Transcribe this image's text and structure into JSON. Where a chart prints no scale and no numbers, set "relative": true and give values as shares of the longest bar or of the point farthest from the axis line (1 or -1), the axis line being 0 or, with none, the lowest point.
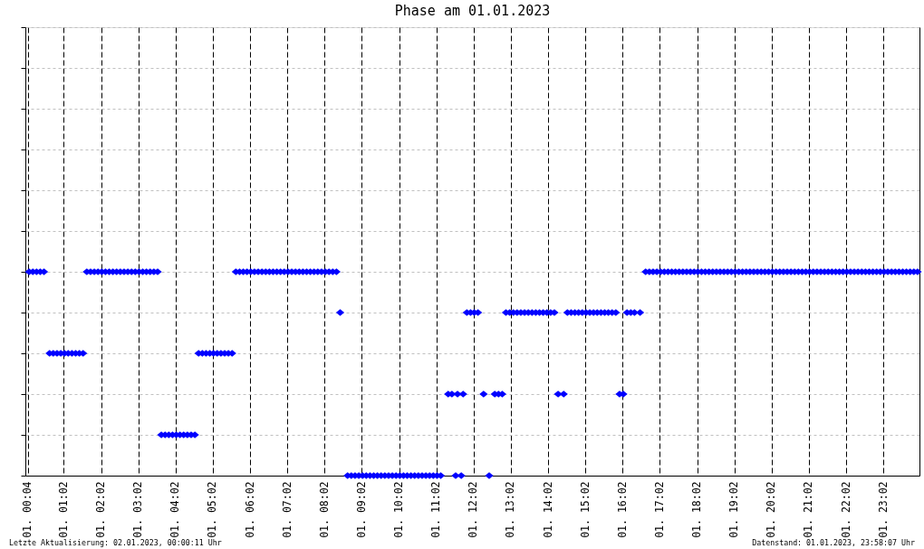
{
  "chart_data": {
    "type": "scatter",
    "title": "Phase am 01.01.2023",
    "relative": true,
    "x": [
      "2023-01-01T00:06",
      "2023-01-01T00:12",
      "2023-01-01T00:18",
      "2023-01-01T00:24",
      "2023-01-01T00:30",
      "2023-01-01T00:39",
      "2023-01-01T00:45",
      "2023-01-01T00:51",
      "2023-01-01T00:57",
      "2023-01-01T01:03",
      "2023-01-01T01:09",
      "2023-01-01T01:15",
      "2023-01-01T01:21",
      "2023-01-01T01:27",
      "2023-01-01T01:33",
      "2023-01-01T01:39",
      "2023-01-01T01:45",
      "2023-01-01T01:51",
      "2023-01-01T01:57",
      "2023-01-01T02:03",
      "2023-01-01T02:09",
      "2023-01-01T02:15",
      "2023-01-01T02:21",
      "2023-01-01T02:27",
      "2023-01-01T02:33",
      "2023-01-01T02:39",
      "2023-01-01T02:45",
      "2023-01-01T02:51",
      "2023-01-01T02:57",
      "2023-01-01T03:03",
      "2023-01-01T03:09",
      "2023-01-01T03:15",
      "2023-01-01T03:21",
      "2023-01-01T03:27",
      "2023-01-01T03:33",
      "2023-01-01T03:39",
      "2023-01-01T03:45",
      "2023-01-01T03:51",
      "2023-01-01T03:57",
      "2023-01-01T04:03",
      "2023-01-01T04:09",
      "2023-01-01T04:15",
      "2023-01-01T04:21",
      "2023-01-01T04:27",
      "2023-01-01T04:33",
      "2023-01-01T04:39",
      "2023-01-01T04:45",
      "2023-01-01T04:51",
      "2023-01-01T04:57",
      "2023-01-01T05:03",
      "2023-01-01T05:09",
      "2023-01-01T05:15",
      "2023-01-01T05:21",
      "2023-01-01T05:27",
      "2023-01-01T05:33",
      "2023-01-01T05:39",
      "2023-01-01T05:45",
      "2023-01-01T05:51",
      "2023-01-01T05:57",
      "2023-01-01T06:03",
      "2023-01-01T06:09",
      "2023-01-01T06:15",
      "2023-01-01T06:21",
      "2023-01-01T06:27",
      "2023-01-01T06:33",
      "2023-01-01T06:39",
      "2023-01-01T06:45",
      "2023-01-01T06:51",
      "2023-01-01T06:57",
      "2023-01-01T07:03",
      "2023-01-01T07:09",
      "2023-01-01T07:15",
      "2023-01-01T07:21",
      "2023-01-01T07:27",
      "2023-01-01T07:33",
      "2023-01-01T07:39",
      "2023-01-01T07:45",
      "2023-01-01T07:51",
      "2023-01-01T07:57",
      "2023-01-01T08:03",
      "2023-01-01T08:09",
      "2023-01-01T08:15",
      "2023-01-01T08:21",
      "2023-01-01T08:27",
      "2023-01-01T08:39",
      "2023-01-01T08:45",
      "2023-01-01T08:51",
      "2023-01-01T08:57",
      "2023-01-01T09:03",
      "2023-01-01T09:09",
      "2023-01-01T09:15",
      "2023-01-01T09:21",
      "2023-01-01T09:27",
      "2023-01-01T09:33",
      "2023-01-01T09:39",
      "2023-01-01T09:45",
      "2023-01-01T09:51",
      "2023-01-01T09:57",
      "2023-01-01T10:03",
      "2023-01-01T10:09",
      "2023-01-01T10:15",
      "2023-01-01T10:21",
      "2023-01-01T10:27",
      "2023-01-01T10:33",
      "2023-01-01T10:39",
      "2023-01-01T10:45",
      "2023-01-01T10:51",
      "2023-01-01T10:57",
      "2023-01-01T11:03",
      "2023-01-01T11:09",
      "2023-01-01T11:21",
      "2023-01-01T11:27",
      "2023-01-01T11:33",
      "2023-01-01T11:36",
      "2023-01-01T11:42",
      "2023-01-01T11:45",
      "2023-01-01T11:51",
      "2023-01-01T11:57",
      "2023-01-01T12:03",
      "2023-01-01T12:09",
      "2023-01-01T12:18",
      "2023-01-01T12:27",
      "2023-01-01T12:36",
      "2023-01-01T12:42",
      "2023-01-01T12:48",
      "2023-01-01T12:54",
      "2023-01-01T13:00",
      "2023-01-01T13:06",
      "2023-01-01T13:12",
      "2023-01-01T13:18",
      "2023-01-01T13:24",
      "2023-01-01T13:30",
      "2023-01-01T13:36",
      "2023-01-01T13:42",
      "2023-01-01T13:48",
      "2023-01-01T13:54",
      "2023-01-01T14:00",
      "2023-01-01T14:06",
      "2023-01-01T14:12",
      "2023-01-01T14:18",
      "2023-01-01T14:27",
      "2023-01-01T14:33",
      "2023-01-01T14:39",
      "2023-01-01T14:45",
      "2023-01-01T14:51",
      "2023-01-01T14:57",
      "2023-01-01T15:03",
      "2023-01-01T15:09",
      "2023-01-01T15:15",
      "2023-01-01T15:21",
      "2023-01-01T15:27",
      "2023-01-01T15:33",
      "2023-01-01T15:39",
      "2023-01-01T15:45",
      "2023-01-01T15:51",
      "2023-01-01T15:57",
      "2023-01-01T16:03",
      "2023-01-01T16:09",
      "2023-01-01T16:15",
      "2023-01-01T16:21",
      "2023-01-01T16:30",
      "2023-01-01T16:39",
      "2023-01-01T16:45",
      "2023-01-01T16:51",
      "2023-01-01T16:57",
      "2023-01-01T17:03",
      "2023-01-01T17:09",
      "2023-01-01T17:15",
      "2023-01-01T17:21",
      "2023-01-01T17:27",
      "2023-01-01T17:33",
      "2023-01-01T17:39",
      "2023-01-01T17:45",
      "2023-01-01T17:51",
      "2023-01-01T17:57",
      "2023-01-01T18:03",
      "2023-01-01T18:09",
      "2023-01-01T18:15",
      "2023-01-01T18:21",
      "2023-01-01T18:27",
      "2023-01-01T18:33",
      "2023-01-01T18:39",
      "2023-01-01T18:45",
      "2023-01-01T18:51",
      "2023-01-01T18:57",
      "2023-01-01T19:03",
      "2023-01-01T19:09",
      "2023-01-01T19:15",
      "2023-01-01T19:21",
      "2023-01-01T19:27",
      "2023-01-01T19:33",
      "2023-01-01T19:39",
      "2023-01-01T19:45",
      "2023-01-01T19:51",
      "2023-01-01T19:57",
      "2023-01-01T20:03",
      "2023-01-01T20:09",
      "2023-01-01T20:15",
      "2023-01-01T20:21",
      "2023-01-01T20:27",
      "2023-01-01T20:33",
      "2023-01-01T20:39",
      "2023-01-01T20:45",
      "2023-01-01T20:51",
      "2023-01-01T20:57",
      "2023-01-01T21:03",
      "2023-01-01T21:09",
      "2023-01-01T21:15",
      "2023-01-01T21:21",
      "2023-01-01T21:27",
      "2023-01-01T21:33",
      "2023-01-01T21:39",
      "2023-01-01T21:45",
      "2023-01-01T21:51",
      "2023-01-01T21:57",
      "2023-01-01T22:03",
      "2023-01-01T22:09",
      "2023-01-01T22:15",
      "2023-01-01T22:21",
      "2023-01-01T22:27",
      "2023-01-01T22:33",
      "2023-01-01T22:39",
      "2023-01-01T22:45",
      "2023-01-01T22:51",
      "2023-01-01T22:57",
      "2023-01-01T23:03",
      "2023-01-01T23:09",
      "2023-01-01T23:15",
      "2023-01-01T23:21",
      "2023-01-01T23:27",
      "2023-01-01T23:33",
      "2023-01-01T23:39",
      "2023-01-01T23:45",
      "2023-01-01T23:51",
      "2023-01-01T23:57"
    ],
    "series": [
      {
        "color": "#0000ff",
        "values": [
          1,
          1,
          1,
          1,
          1,
          0.6,
          0.6,
          0.6,
          0.6,
          0.6,
          0.6,
          0.6,
          0.6,
          0.6,
          0.6,
          1,
          1,
          1,
          1,
          1,
          1,
          1,
          1,
          1,
          1,
          1,
          1,
          1,
          1,
          1,
          1,
          1,
          1,
          1,
          1,
          0.2,
          0.2,
          0.2,
          0.2,
          0.2,
          0.2,
          0.2,
          0.2,
          0.2,
          0.2,
          0.6,
          0.6,
          0.6,
          0.6,
          0.6,
          0.6,
          0.6,
          0.6,
          0.6,
          0.6,
          1,
          1,
          1,
          1,
          1,
          1,
          1,
          1,
          1,
          1,
          1,
          1,
          1,
          1,
          1,
          1,
          1,
          1,
          1,
          1,
          1,
          1,
          1,
          1,
          1,
          1,
          1,
          1,
          0.8,
          0,
          0,
          0,
          0,
          0,
          0,
          0,
          0,
          0,
          0,
          0,
          0,
          0,
          0,
          0,
          0,
          0,
          0,
          0,
          0,
          0,
          0,
          0,
          0,
          0,
          0,
          0.4,
          0.4,
          0,
          0.4,
          0,
          0.4,
          0.8,
          0.8,
          0.8,
          0.8,
          0.4,
          0,
          0.4,
          0.4,
          0.4,
          0.8,
          0.8,
          0.8,
          0.8,
          0.8,
          0.8,
          0.8,
          0.8,
          0.8,
          0.8,
          0.8,
          0.8,
          0.8,
          0.8,
          0.4,
          0.4,
          0.8,
          0.8,
          0.8,
          0.8,
          0.8,
          0.8,
          0.8,
          0.8,
          0.8,
          0.8,
          0.8,
          0.8,
          0.8,
          0.8,
          0.4,
          0.4,
          0.8,
          0.8,
          0.8,
          0.8,
          1,
          1,
          1,
          1,
          1,
          1,
          1,
          1,
          1,
          1,
          1,
          1,
          1,
          1,
          1,
          1,
          1,
          1,
          1,
          1,
          1,
          1,
          1,
          1,
          1,
          1,
          1,
          1,
          1,
          1,
          1,
          1,
          1,
          1,
          1,
          1,
          1,
          1,
          1,
          1,
          1,
          1,
          1,
          1,
          1,
          1,
          1,
          1,
          1,
          1,
          1,
          1,
          1,
          1,
          1,
          1,
          1,
          1,
          1,
          1,
          1,
          1,
          1,
          1,
          1,
          1,
          1,
          1,
          1,
          1,
          1,
          1,
          1,
          1
        ]
      }
    ],
    "xlim": [
      "2023-01-01T00:00",
      "2023-01-02T00:00"
    ],
    "xticks": [
      {
        "value": "2023-01-01T00:04",
        "label": "01. 00:04"
      },
      {
        "value": "2023-01-01T01:02",
        "label": "01. 01:02"
      },
      {
        "value": "2023-01-01T02:02",
        "label": "01. 02:02"
      },
      {
        "value": "2023-01-01T03:02",
        "label": "01. 03:02"
      },
      {
        "value": "2023-01-01T04:02",
        "label": "01. 04:02"
      },
      {
        "value": "2023-01-01T05:02",
        "label": "01. 05:02"
      },
      {
        "value": "2023-01-01T06:02",
        "label": "01. 06:02"
      },
      {
        "value": "2023-01-01T07:02",
        "label": "01. 07:02"
      },
      {
        "value": "2023-01-01T08:02",
        "label": "01. 08:02"
      },
      {
        "value": "2023-01-01T09:02",
        "label": "01. 09:02"
      },
      {
        "value": "2023-01-01T10:02",
        "label": "01. 10:02"
      },
      {
        "value": "2023-01-01T11:02",
        "label": "01. 11:02"
      },
      {
        "value": "2023-01-01T12:02",
        "label": "01. 12:02"
      },
      {
        "value": "2023-01-01T13:02",
        "label": "01. 13:02"
      },
      {
        "value": "2023-01-01T14:02",
        "label": "01. 14:02"
      },
      {
        "value": "2023-01-01T15:02",
        "label": "01. 15:02"
      },
      {
        "value": "2023-01-01T16:02",
        "label": "01. 16:02"
      },
      {
        "value": "2023-01-01T17:02",
        "label": "01. 17:02"
      },
      {
        "value": "2023-01-01T18:02",
        "label": "01. 18:02"
      },
      {
        "value": "2023-01-01T19:02",
        "label": "01. 19:02"
      },
      {
        "value": "2023-01-01T20:02",
        "label": "01. 20:02"
      },
      {
        "value": "2023-01-01T21:02",
        "label": "01. 21:02"
      },
      {
        "value": "2023-01-01T22:02",
        "label": "01. 22:02"
      },
      {
        "value": "2023-01-01T23:02",
        "label": "01. 23:02"
      }
    ],
    "marker": "diamond",
    "grid": true,
    "tick_labels": "x",
    "annotations": [
      "Letzte Aktualisierung: 02.01.2023, 00:00:11 Uhr",
      "Datenstand: 01.01.2023, 23:58:07 Uhr"
    ]
  }
}
